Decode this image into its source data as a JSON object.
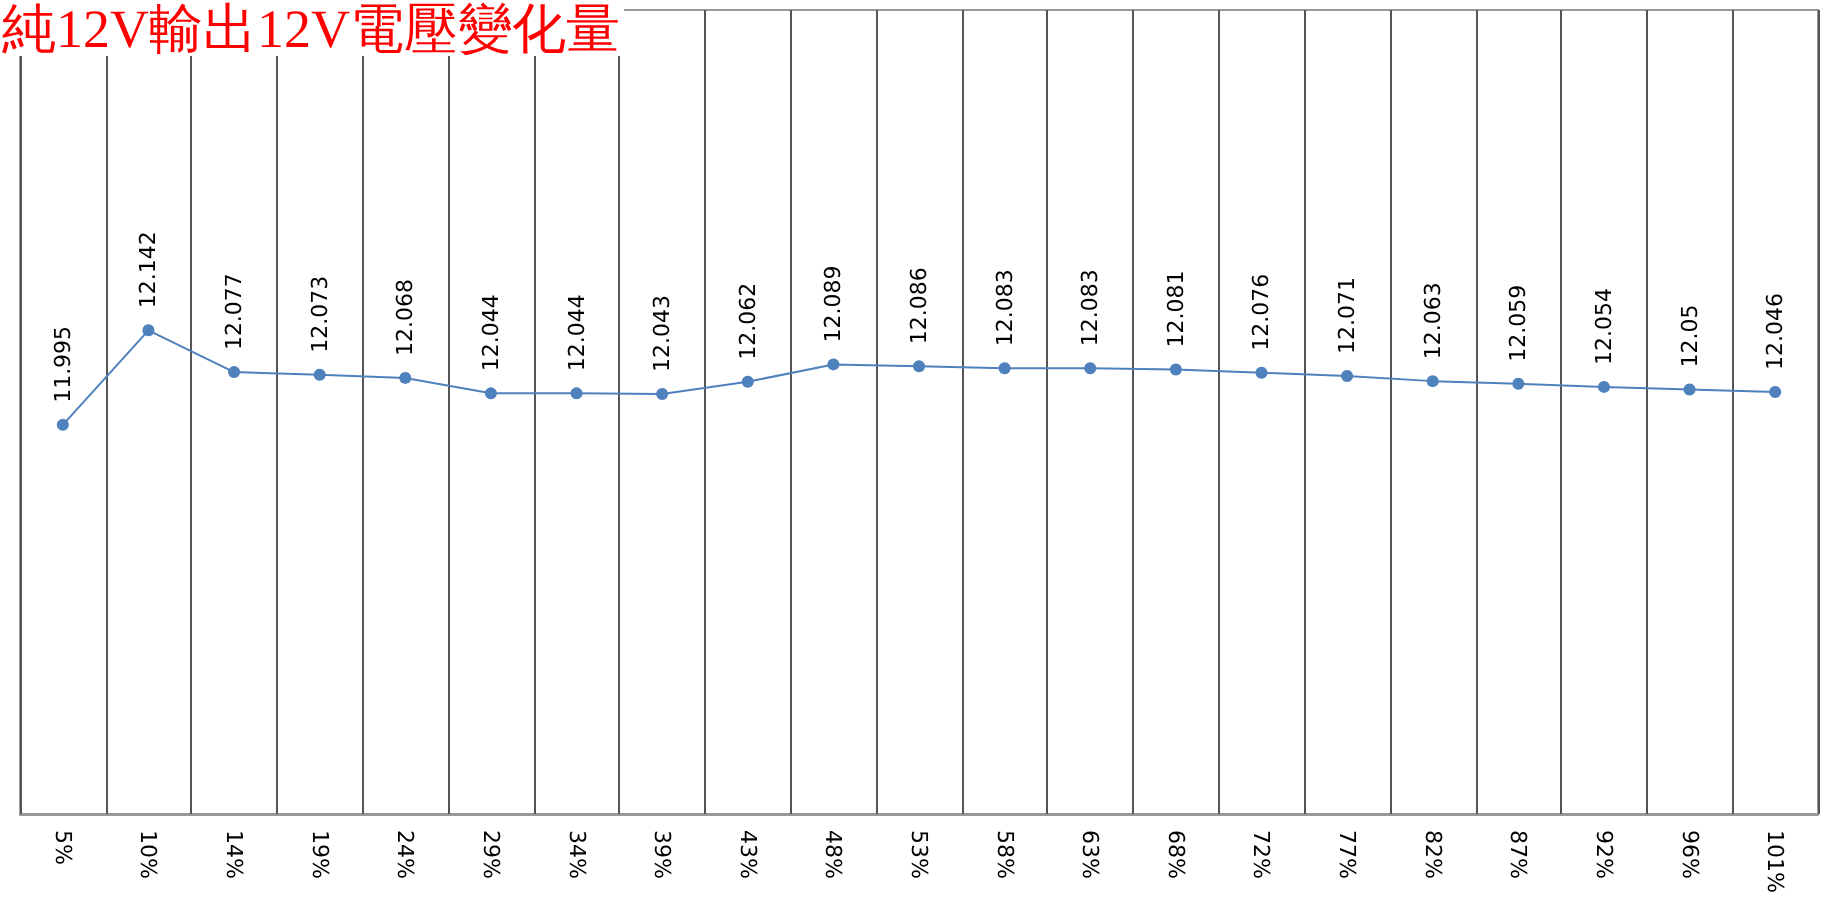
{
  "chart_data": {
    "type": "line",
    "title": "純12V輸出12V電壓變化量",
    "categories": [
      "5%",
      "10%",
      "14%",
      "19%",
      "24%",
      "29%",
      "34%",
      "39%",
      "43%",
      "48%",
      "53%",
      "58%",
      "63%",
      "68%",
      "72%",
      "77%",
      "82%",
      "87%",
      "92%",
      "96%",
      "101%"
    ],
    "series": [
      {
        "color": "#4f81bd",
        "values": [
          11.995,
          12.142,
          12.077,
          12.073,
          12.068,
          12.044,
          12.044,
          12.043,
          12.062,
          12.089,
          12.086,
          12.083,
          12.083,
          12.081,
          12.076,
          12.071,
          12.063,
          12.059,
          12.054,
          12.05,
          12.046
        ]
      }
    ],
    "ylim": [
      11.39,
      12.64
    ],
    "tick_labels": "x",
    "grid": "x",
    "marker": "circle",
    "line_style": "solid",
    "data_labels": true
  }
}
